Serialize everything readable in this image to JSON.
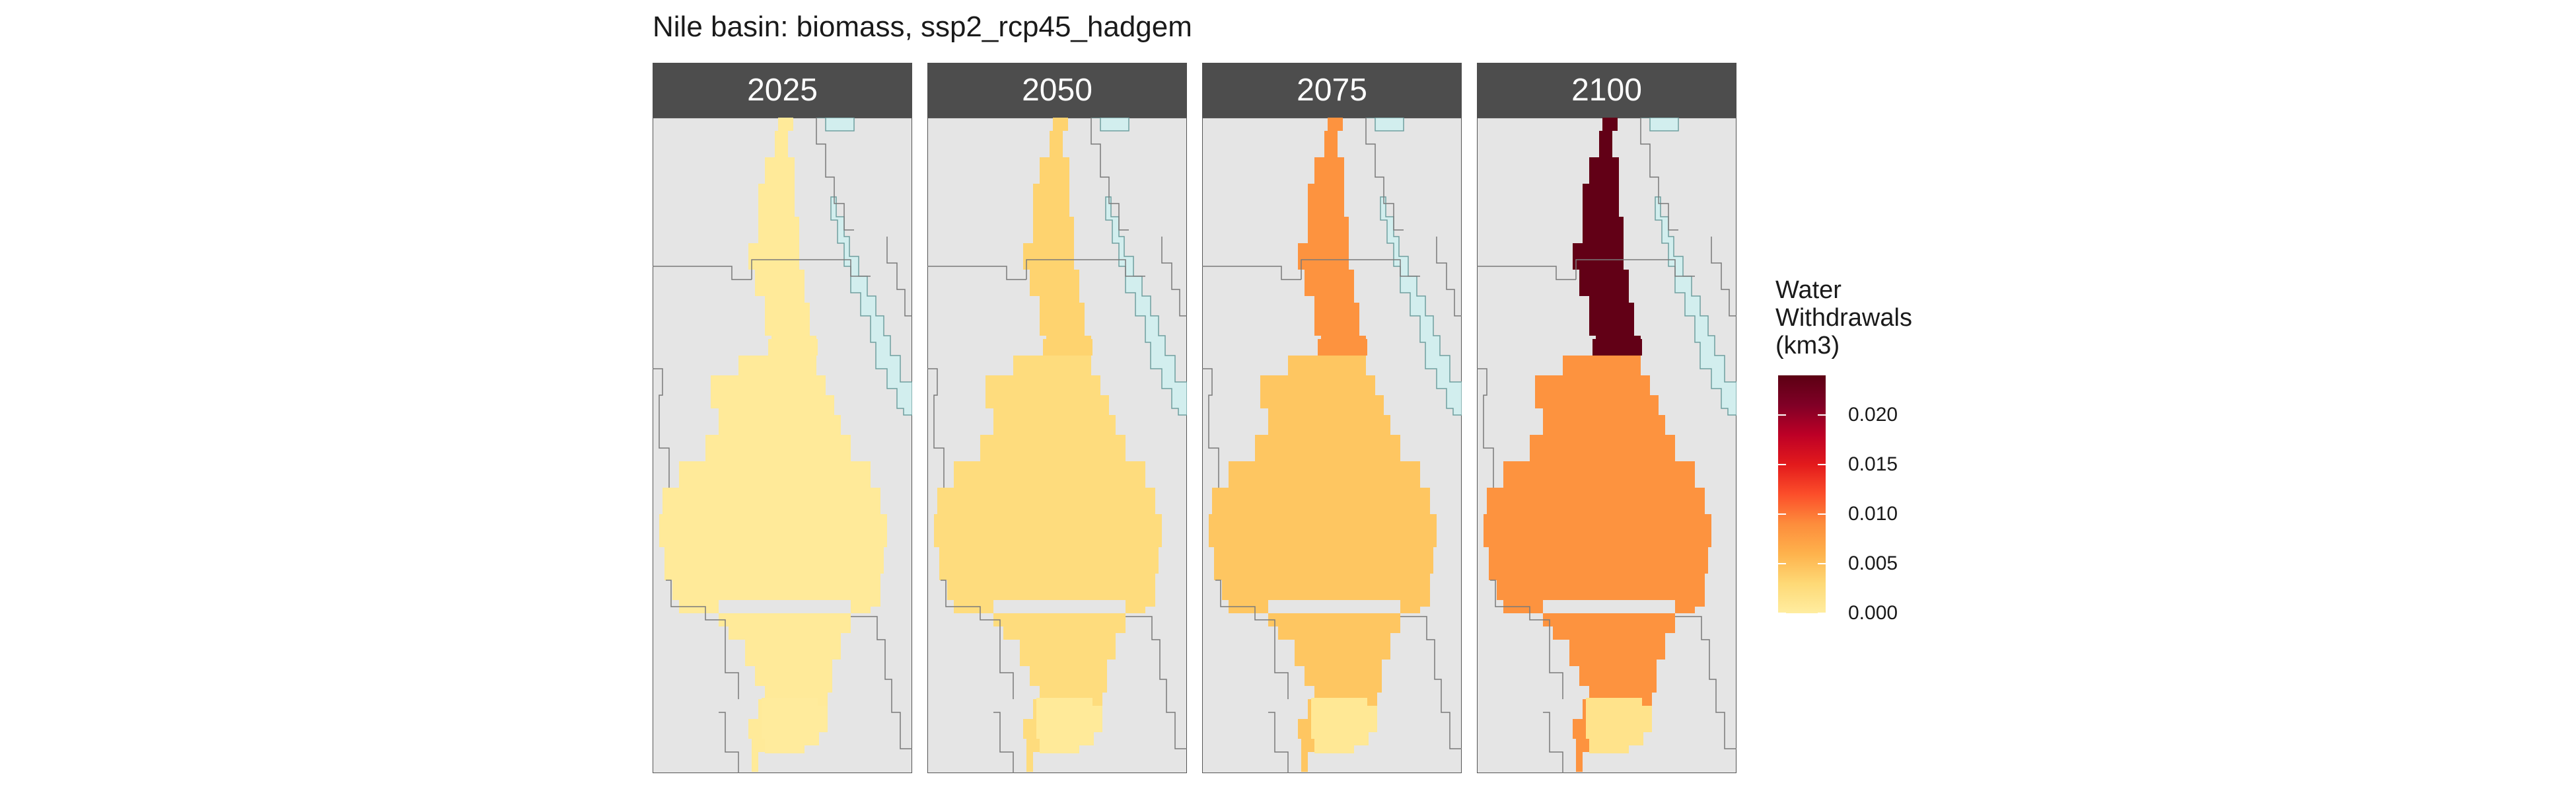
{
  "title": "Nile basin: biomass, ssp2_rcp45_hadgem",
  "chart_data": {
    "type": "heatmap",
    "subtype": "faceted choropleth map",
    "title": "Nile basin: biomass, ssp2_rcp45_hadgem",
    "facets": [
      {
        "label": "2025",
        "regions": {
          "north_egypt": 0.0005,
          "upper_egypt": 0.0005,
          "sudan": 0.0005,
          "south": 0.0005,
          "lakes": 0.0003
        }
      },
      {
        "label": "2050",
        "regions": {
          "north_egypt": 0.0035,
          "upper_egypt": 0.0035,
          "sudan": 0.0025,
          "south": 0.0025,
          "lakes": 0.0005
        }
      },
      {
        "label": "2075",
        "regions": {
          "north_egypt": 0.0085,
          "upper_egypt": 0.0085,
          "sudan": 0.0045,
          "south": 0.0045,
          "lakes": 0.0008
        }
      },
      {
        "label": "2100",
        "regions": {
          "north_egypt": 0.0235,
          "upper_egypt": 0.0235,
          "sudan": 0.0085,
          "south": 0.0085,
          "lakes": 0.0015
        }
      }
    ],
    "legend": {
      "title_lines": [
        "Water",
        "Withdrawals",
        "(km3)"
      ],
      "ticks": [
        0.0,
        0.005,
        0.01,
        0.015,
        0.02
      ],
      "tick_labels": [
        "0.000",
        "0.005",
        "0.010",
        "0.015",
        "0.020"
      ],
      "range": [
        0,
        0.024
      ],
      "placement": "right"
    },
    "colors": {
      "scale": [
        "#FFEDA0",
        "#FED976",
        "#FEB24C",
        "#FD8D3C",
        "#FC4E2A",
        "#E31A1C",
        "#BD0026",
        "#800026",
        "#5C0013"
      ],
      "background": "#E5E5E5",
      "sea": "#D2EEEE",
      "strip": "#4D4D4D"
    }
  }
}
